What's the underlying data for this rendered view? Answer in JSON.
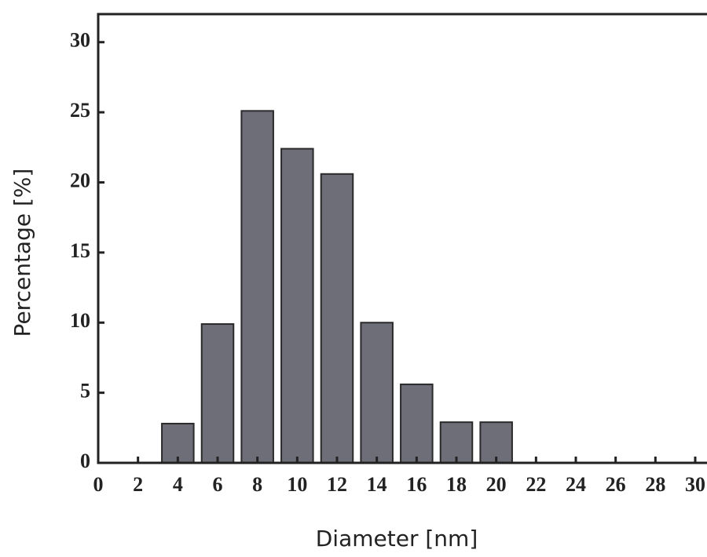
{
  "chart_data": {
    "type": "bar",
    "x": [
      4,
      6,
      8,
      10,
      12,
      14,
      16,
      18,
      20
    ],
    "values": [
      2.8,
      9.9,
      25.1,
      22.4,
      20.6,
      10.0,
      5.6,
      2.9,
      2.9
    ],
    "color": "#6e6e78",
    "xlabel": "Diameter [nm]",
    "ylabel": "Percentage [%]",
    "xlim": [
      0,
      30
    ],
    "xticks": [
      0,
      2,
      4,
      6,
      8,
      10,
      12,
      14,
      16,
      18,
      20,
      22,
      24,
      26,
      28,
      30
    ],
    "ylim": [
      0,
      32
    ],
    "yticks": [
      0,
      5,
      10,
      15,
      20,
      25,
      30
    ],
    "grid": false
  }
}
